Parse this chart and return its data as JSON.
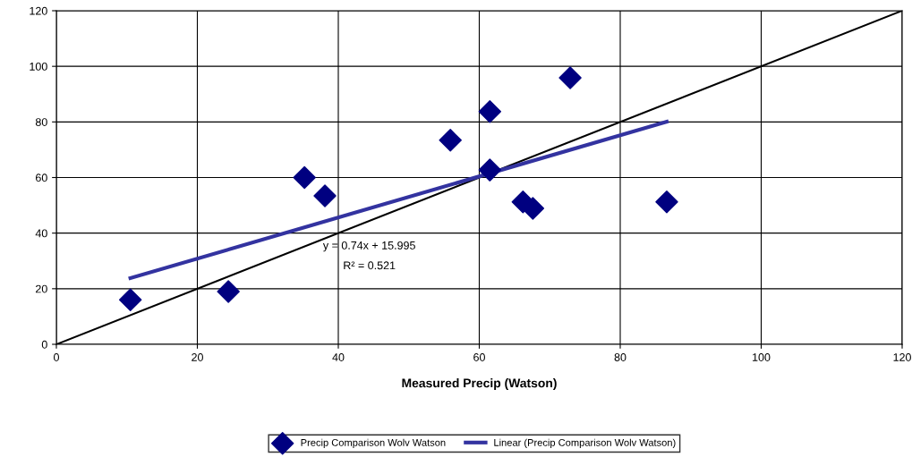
{
  "chart_data": {
    "type": "scatter",
    "xlabel": "Measured Precip (Watson)",
    "xlim": [
      0,
      120
    ],
    "xticks": [
      0,
      20,
      40,
      60,
      80,
      100,
      120
    ],
    "ylim": [
      0,
      120
    ],
    "yticks": [
      0,
      20,
      40,
      60,
      80,
      100,
      120
    ],
    "grid": true,
    "legend": "bottom",
    "annotations": [
      "y = 0.74x + 15.995",
      "R² = 0.521"
    ],
    "series": [
      {
        "name": "Precip Comparison Wolv Watson",
        "marker": "diamond",
        "color": "#000080",
        "x": [
          10.5,
          24.4,
          35.2,
          38.1,
          55.9,
          61.5,
          61.5,
          66.2,
          67.6,
          72.9,
          86.6
        ],
        "values": [
          16,
          19,
          60,
          53.4,
          73.4,
          83.7,
          62.7,
          51.2,
          48.9,
          95.9,
          51.2
        ]
      },
      {
        "type": "line",
        "marker": "none",
        "color": "#000000",
        "x": [
          0,
          120
        ],
        "values": [
          0,
          120
        ]
      },
      {
        "name": "Linear (Precip Comparison Wolv Watson)",
        "type": "line",
        "marker": "none",
        "color": "#3333a0",
        "x": [
          10.5,
          86.6
        ],
        "values": [
          23.8,
          80.1
        ]
      }
    ]
  }
}
